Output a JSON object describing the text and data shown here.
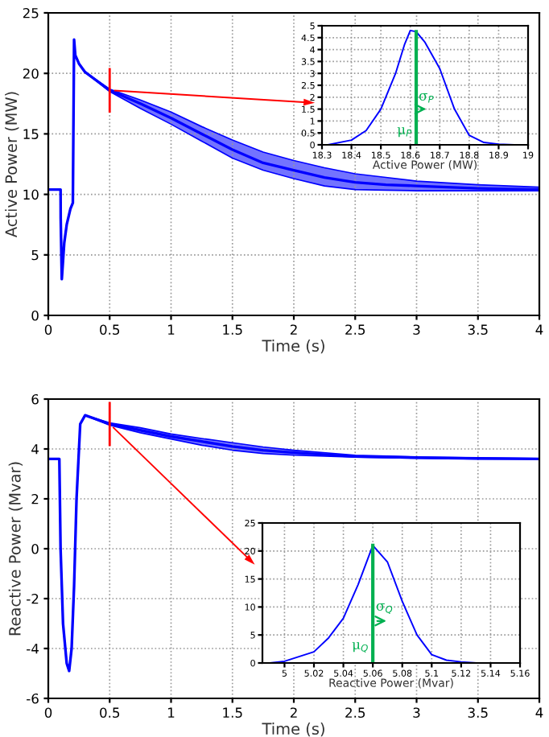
{
  "chart_data": [
    {
      "type": "line",
      "xlabel": "Time (s)",
      "ylabel": "Active Power (MW)",
      "xlim": [
        0,
        4
      ],
      "ylim": [
        0,
        25
      ],
      "xticks": [
        0,
        0.5,
        1,
        1.5,
        2,
        2.5,
        3,
        3.5,
        4
      ],
      "yticks": [
        0,
        5,
        10,
        15,
        20,
        25
      ],
      "grid": true,
      "series": [
        {
          "color": "#0000ff",
          "x": [
            0,
            0.1,
            0.101,
            0.11,
            0.13,
            0.15,
            0.18,
            0.2,
            0.21,
            0.22,
            0.25,
            0.3,
            0.5,
            0.75,
            1.0,
            1.25,
            1.5,
            1.75,
            2.0,
            2.25,
            2.5,
            2.75,
            3.0,
            3.5,
            4.0
          ],
          "values": [
            10.4,
            10.4,
            8,
            3,
            6,
            7.5,
            8.8,
            9.3,
            22.8,
            21.5,
            20.8,
            20.1,
            18.6,
            17.5,
            16.3,
            15.0,
            13.7,
            12.6,
            12.0,
            11.4,
            11.0,
            10.8,
            10.7,
            10.5,
            10.4
          ],
          "lower": [
            10.4,
            10.4,
            8,
            3,
            6,
            7.5,
            8.8,
            9.3,
            22.8,
            21.5,
            20.8,
            20.1,
            18.5,
            17.1,
            15.8,
            14.4,
            13.0,
            12.0,
            11.3,
            10.7,
            10.4,
            10.35,
            10.3,
            10.3,
            10.3
          ],
          "upper": [
            10.4,
            10.4,
            8,
            3,
            6,
            7.5,
            8.8,
            9.3,
            22.8,
            21.5,
            20.8,
            20.1,
            18.7,
            17.8,
            16.8,
            15.6,
            14.5,
            13.5,
            12.8,
            12.2,
            11.7,
            11.4,
            11.1,
            10.8,
            10.6
          ]
        }
      ],
      "ref_lines": [
        {
          "axis": "x",
          "value": 0.5,
          "color": "#ff0000"
        }
      ]
    },
    {
      "type": "line",
      "xlabel": "Active Power (MW)",
      "xlim": [
        18.3,
        19
      ],
      "ylim": [
        0,
        5
      ],
      "xticks": [
        18.3,
        18.4,
        18.5,
        18.6,
        18.7,
        18.8,
        18.9,
        19
      ],
      "yticks": [
        0,
        0.5,
        1,
        1.5,
        2,
        2.5,
        3,
        3.5,
        4,
        4.5,
        5
      ],
      "grid": true,
      "series": [
        {
          "color": "#0000ff",
          "x": [
            18.32,
            18.4,
            18.45,
            18.5,
            18.55,
            18.58,
            18.6,
            18.62,
            18.65,
            18.7,
            18.75,
            18.8,
            18.85,
            18.9,
            18.95
          ],
          "values": [
            0,
            0.2,
            0.6,
            1.5,
            3.0,
            4.2,
            4.8,
            4.75,
            4.3,
            3.2,
            1.5,
            0.4,
            0.1,
            0.03,
            0
          ]
        }
      ],
      "ref_lines": [
        {
          "axis": "x",
          "value": 18.62,
          "label": "μ$_{P}$",
          "color": "#00b050"
        }
      ],
      "annotations": [
        "σ$_{P}$"
      ]
    },
    {
      "type": "line",
      "xlabel": "Time (s)",
      "ylabel": "Reactive Power (Mvar)",
      "xlim": [
        0,
        4
      ],
      "ylim": [
        -6,
        6
      ],
      "xticks": [
        0,
        0.5,
        1,
        1.5,
        2,
        2.5,
        3,
        3.5,
        4
      ],
      "yticks": [
        -6,
        -4,
        -2,
        0,
        2,
        4,
        6
      ],
      "grid": true,
      "series": [
        {
          "color": "#0000ff",
          "x": [
            0,
            0.09,
            0.1,
            0.12,
            0.15,
            0.17,
            0.19,
            0.21,
            0.23,
            0.26,
            0.3,
            0.5,
            0.75,
            1.0,
            1.25,
            1.5,
            1.75,
            2.0,
            2.5,
            3.0,
            3.5,
            4.0
          ],
          "values": [
            3.6,
            3.6,
            0,
            -3,
            -4.6,
            -4.9,
            -4.0,
            -1.5,
            2,
            5,
            5.35,
            5.0,
            4.75,
            4.5,
            4.3,
            4.1,
            3.95,
            3.85,
            3.7,
            3.65,
            3.62,
            3.6
          ],
          "lower": [
            3.6,
            3.6,
            0,
            -3,
            -4.6,
            -4.9,
            -4.0,
            -1.5,
            2,
            5,
            5.35,
            4.95,
            4.65,
            4.4,
            4.15,
            3.95,
            3.82,
            3.75,
            3.67,
            3.63,
            3.6,
            3.6
          ],
          "upper": [
            3.6,
            3.6,
            0,
            -3,
            -4.6,
            -4.9,
            -4.0,
            -1.5,
            2,
            5,
            5.35,
            5.05,
            4.85,
            4.6,
            4.42,
            4.25,
            4.08,
            3.95,
            3.75,
            3.68,
            3.64,
            3.62
          ]
        }
      ],
      "ref_lines": [
        {
          "axis": "x",
          "value": 0.5,
          "color": "#ff0000"
        }
      ]
    },
    {
      "type": "line",
      "xlabel": "Reactive Power (Mvar)",
      "xlim": [
        4.985,
        5.16
      ],
      "ylim": [
        0,
        25
      ],
      "xticks": [
        5,
        5.02,
        5.04,
        5.06,
        5.08,
        5.1,
        5.12,
        5.14,
        5.16
      ],
      "yticks": [
        0,
        5,
        10,
        15,
        20,
        25
      ],
      "grid": true,
      "series": [
        {
          "color": "#0000ff",
          "x": [
            4.99,
            5.0,
            5.02,
            5.03,
            5.04,
            5.05,
            5.06,
            5.07,
            5.08,
            5.09,
            5.1,
            5.11,
            5.12,
            5.13
          ],
          "values": [
            0,
            0.3,
            2,
            4.5,
            8,
            14,
            21,
            18,
            11,
            5,
            1.5,
            0.5,
            0.2,
            0
          ]
        }
      ],
      "ref_lines": [
        {
          "axis": "x",
          "value": 5.06,
          "label": "μ$_{Q}$",
          "color": "#00b050"
        }
      ],
      "annotations": [
        "σ$_{Q}$"
      ]
    }
  ]
}
